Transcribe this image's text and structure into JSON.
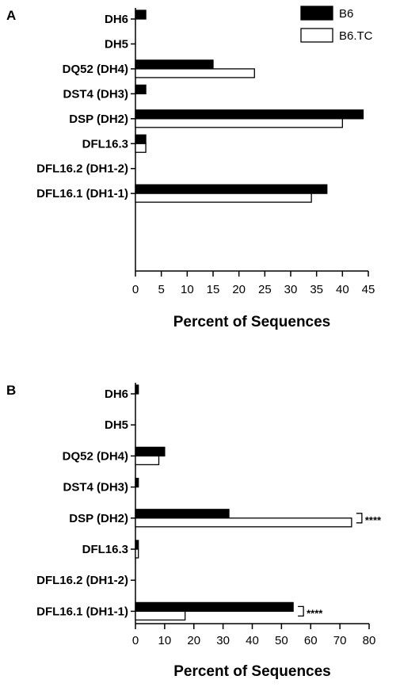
{
  "legend": {
    "position": "top-right",
    "entries": [
      {
        "name": "B6",
        "color": "#000000",
        "fill": "solid"
      },
      {
        "name": "B6.TC",
        "color": "#ffffff",
        "fill": "hollow"
      }
    ]
  },
  "chart_data": [
    {
      "type": "bar",
      "orientation": "horizontal",
      "panel": "A",
      "categories": [
        "DH6",
        "DH5",
        "DQ52 (DH4)",
        "DST4 (DH3)",
        "DSP (DH2)",
        "DFL16.3",
        "DFL16.2 (DH1-2)",
        "DFL16.1 (DH1-1)"
      ],
      "series": [
        {
          "name": "B6",
          "values": [
            2,
            0,
            15,
            2,
            44,
            2,
            0,
            37
          ]
        },
        {
          "name": "B6.TC",
          "values": [
            0,
            0,
            23,
            0,
            40,
            2,
            0,
            34
          ]
        }
      ],
      "xlabel": "Percent of Sequences",
      "xlim": [
        0,
        45
      ],
      "xticks": [
        0,
        5,
        10,
        15,
        20,
        25,
        30,
        35,
        40,
        45
      ],
      "annotations": []
    },
    {
      "type": "bar",
      "orientation": "horizontal",
      "panel": "B",
      "categories": [
        "DH6",
        "DH5",
        "DQ52 (DH4)",
        "DST4 (DH3)",
        "DSP (DH2)",
        "DFL16.3",
        "DFL16.2 (DH1-2)",
        "DFL16.1 (DH1-1)"
      ],
      "series": [
        {
          "name": "B6",
          "values": [
            1,
            0,
            10,
            1,
            32,
            1,
            0,
            54
          ]
        },
        {
          "name": "B6.TC",
          "values": [
            0,
            0,
            8,
            0,
            74,
            1,
            0,
            17
          ]
        }
      ],
      "xlabel": "Percent of Sequences",
      "xlim": [
        0,
        80
      ],
      "xticks": [
        0,
        10,
        20,
        30,
        40,
        50,
        60,
        70,
        80
      ],
      "annotations": [
        {
          "category": "DSP (DH2)",
          "text": "****"
        },
        {
          "category": "DFL16.1 (DH1-1)",
          "text": "****"
        }
      ]
    }
  ]
}
